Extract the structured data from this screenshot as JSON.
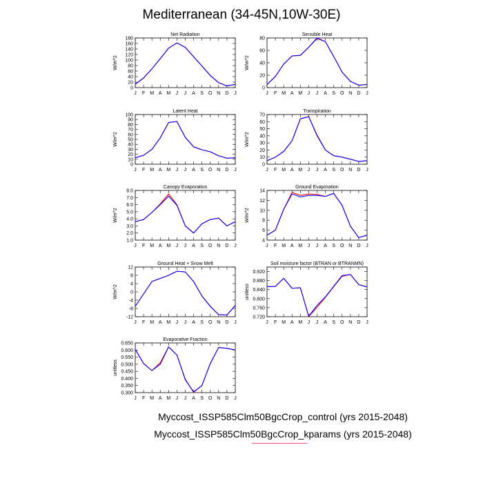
{
  "title": "Mediterranean (34-45N,10W-30E)",
  "legend": [
    {
      "label": "Myccost_ISSP585Clm50BgcCrop_control (yrs 2015-2048)",
      "color": "#0000ff"
    },
    {
      "label": "Myccost_ISSP585Clm50BgcCrop_kparams (yrs 2015-2048)",
      "color": "#ff0000"
    }
  ],
  "chart_data": [
    {
      "type": "line",
      "title": "Net Radiation",
      "ylabel": "W/m^2",
      "ylim": [
        0,
        180
      ],
      "yticks": [
        "0",
        "20",
        "40",
        "60",
        "80",
        "100",
        "120",
        "140",
        "160",
        "180"
      ],
      "categories": [
        "J",
        "F",
        "M",
        "A",
        "M",
        "J",
        "J",
        "A",
        "S",
        "O",
        "N",
        "D",
        "J"
      ],
      "series": [
        {
          "name": "control",
          "values": [
            12,
            35,
            68,
            105,
            143,
            162,
            146,
            112,
            78,
            44,
            18,
            6,
            12
          ]
        },
        {
          "name": "kparams",
          "values": [
            12,
            35,
            68,
            105,
            143,
            162,
            146,
            112,
            78,
            44,
            18,
            6,
            12
          ]
        }
      ]
    },
    {
      "type": "line",
      "title": "Sensible Heat",
      "ylabel": "W/m^2",
      "ylim": [
        0,
        80
      ],
      "yticks": [
        "0",
        "20",
        "40",
        "60",
        "80"
      ],
      "categories": [
        "J",
        "F",
        "M",
        "A",
        "M",
        "J",
        "J",
        "A",
        "S",
        "O",
        "N",
        "D",
        "J"
      ],
      "series": [
        {
          "name": "control",
          "values": [
            5,
            18,
            38,
            51,
            52,
            65,
            80,
            74,
            50,
            25,
            10,
            4,
            5
          ]
        },
        {
          "name": "kparams",
          "values": [
            5,
            18,
            38,
            51,
            52,
            65,
            79,
            74,
            50,
            25,
            10,
            4,
            5
          ]
        }
      ]
    },
    {
      "type": "line",
      "title": "Latent Heat",
      "ylabel": "W/m^2",
      "ylim": [
        0,
        100
      ],
      "yticks": [
        "0",
        "10",
        "20",
        "30",
        "40",
        "50",
        "60",
        "70",
        "80",
        "90",
        "100"
      ],
      "categories": [
        "J",
        "F",
        "M",
        "A",
        "M",
        "J",
        "J",
        "A",
        "S",
        "O",
        "N",
        "D",
        "J"
      ],
      "series": [
        {
          "name": "control",
          "values": [
            13,
            18,
            30,
            53,
            84,
            86,
            54,
            35,
            29,
            25,
            17,
            12,
            13
          ]
        },
        {
          "name": "kparams",
          "values": [
            13,
            18,
            30,
            53,
            84,
            86,
            54,
            35,
            29,
            25,
            17,
            12,
            13
          ]
        }
      ]
    },
    {
      "type": "line",
      "title": "Transpiration",
      "ylabel": "W/m^2",
      "ylim": [
        0,
        70
      ],
      "yticks": [
        "0",
        "10",
        "20",
        "30",
        "40",
        "50",
        "60",
        "70"
      ],
      "categories": [
        "J",
        "F",
        "M",
        "A",
        "M",
        "J",
        "J",
        "A",
        "S",
        "O",
        "N",
        "D",
        "J"
      ],
      "series": [
        {
          "name": "control",
          "values": [
            5,
            10,
            18,
            33,
            64,
            67,
            41,
            20,
            12,
            10,
            7,
            4,
            5
          ]
        },
        {
          "name": "kparams",
          "values": [
            5,
            10,
            18,
            33,
            64,
            67,
            40,
            20,
            12,
            10,
            7,
            4,
            5
          ]
        }
      ]
    },
    {
      "type": "line",
      "title": "Canopy Evaporation",
      "ylabel": "W/m^2",
      "ylim": [
        1.0,
        8.0
      ],
      "yticks": [
        "1.0",
        "2.0",
        "3.0",
        "4.0",
        "5.0",
        "6.0",
        "7.0",
        "8.0"
      ],
      "categories": [
        "J",
        "F",
        "M",
        "A",
        "M",
        "J",
        "J",
        "A",
        "S",
        "O",
        "N",
        "D",
        "J"
      ],
      "series": [
        {
          "name": "control",
          "values": [
            3.6,
            3.9,
            4.9,
            6.0,
            7.2,
            5.9,
            3.0,
            2.0,
            3.3,
            3.9,
            4.1,
            3.0,
            3.6
          ]
        },
        {
          "name": "kparams",
          "values": [
            3.6,
            3.9,
            4.9,
            6.1,
            7.5,
            6.0,
            3.0,
            2.0,
            3.3,
            3.9,
            4.1,
            3.0,
            3.6
          ]
        }
      ]
    },
    {
      "type": "line",
      "title": "Ground Evaporation",
      "ylabel": "W/m^2",
      "ylim": [
        4,
        14
      ],
      "yticks": [
        "4",
        "6",
        "8",
        "10",
        "12",
        "14"
      ],
      "categories": [
        "J",
        "F",
        "M",
        "A",
        "M",
        "J",
        "J",
        "A",
        "S",
        "O",
        "N",
        "D",
        "J"
      ],
      "series": [
        {
          "name": "control",
          "values": [
            5.0,
            6.0,
            10.2,
            13.3,
            12.7,
            13.0,
            13.0,
            12.8,
            13.4,
            11.0,
            6.8,
            4.5,
            5.0
          ]
        },
        {
          "name": "kparams",
          "values": [
            5.0,
            6.0,
            10.2,
            13.6,
            13.0,
            13.3,
            13.2,
            12.8,
            13.4,
            11.0,
            6.8,
            4.5,
            5.0
          ]
        }
      ]
    },
    {
      "type": "line",
      "title": "Ground Heat + Snow Melt",
      "ylabel": "W/m^2",
      "ylim": [
        -12,
        12
      ],
      "yticks": [
        "-12",
        "-8",
        "-4",
        "0",
        "4",
        "8",
        "12"
      ],
      "categories": [
        "J",
        "F",
        "M",
        "A",
        "M",
        "J",
        "J",
        "A",
        "S",
        "O",
        "N",
        "D",
        "J"
      ],
      "series": [
        {
          "name": "control",
          "values": [
            -7,
            -1,
            5,
            6.5,
            8,
            10,
            9.6,
            5,
            -2,
            -7,
            -11,
            -11.2,
            -6.5
          ]
        },
        {
          "name": "kparams",
          "values": [
            -7,
            -1,
            5,
            6.5,
            8,
            10,
            9.6,
            5,
            -2,
            -7,
            -11,
            -11.2,
            -6.5
          ]
        }
      ]
    },
    {
      "type": "line",
      "title": "Soil moisture factor (BTRAN or BTRANMN)",
      "ylabel": "unitless",
      "ylim": [
        0.72,
        0.94
      ],
      "yticks": [
        "0.720",
        "0.760",
        "0.800",
        "0.840",
        "0.880",
        "0.920"
      ],
      "categories": [
        "J",
        "F",
        "M",
        "A",
        "M",
        "J",
        "J",
        "A",
        "S",
        "O",
        "N",
        "D",
        "J"
      ],
      "series": [
        {
          "name": "control",
          "values": [
            0.853,
            0.854,
            0.89,
            0.846,
            0.848,
            0.722,
            0.77,
            0.808,
            0.855,
            0.902,
            0.907,
            0.862,
            0.852
          ]
        },
        {
          "name": "kparams",
          "values": [
            0.853,
            0.854,
            0.89,
            0.846,
            0.848,
            0.72,
            0.762,
            0.806,
            0.853,
            0.899,
            0.907,
            0.862,
            0.852
          ]
        }
      ]
    },
    {
      "type": "line",
      "title": "Evaporative Fraction",
      "ylabel": "unitless",
      "ylim": [
        0.3,
        0.65
      ],
      "yticks": [
        "0.300",
        "0.350",
        "0.400",
        "0.450",
        "0.500",
        "0.550",
        "0.600",
        "0.650"
      ],
      "categories": [
        "J",
        "F",
        "M",
        "A",
        "M",
        "J",
        "J",
        "A",
        "S",
        "O",
        "N",
        "D",
        "J"
      ],
      "series": [
        {
          "name": "control",
          "values": [
            0.605,
            0.505,
            0.455,
            0.5,
            0.622,
            0.565,
            0.39,
            0.305,
            0.35,
            0.505,
            0.618,
            0.612,
            0.6
          ]
        },
        {
          "name": "kparams",
          "values": [
            0.605,
            0.505,
            0.455,
            0.51,
            0.622,
            0.565,
            0.395,
            0.302,
            0.35,
            0.505,
            0.618,
            0.612,
            0.6
          ]
        }
      ]
    }
  ]
}
